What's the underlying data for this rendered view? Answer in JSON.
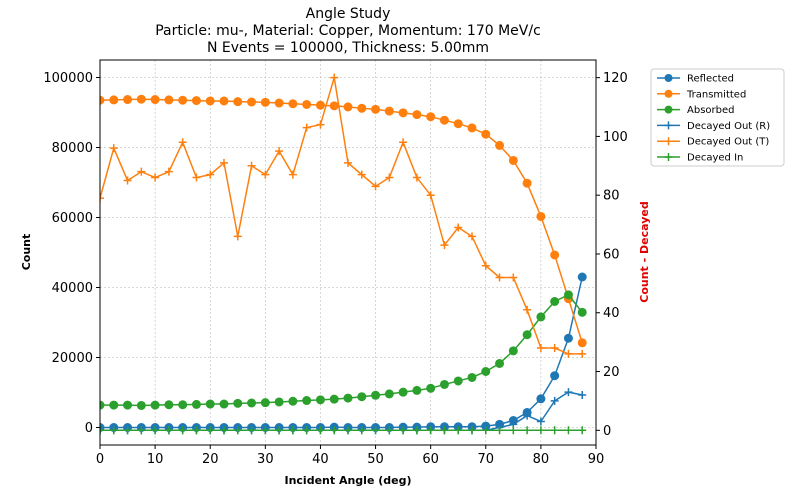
{
  "chart_data": {
    "type": "line",
    "title": "Angle Study",
    "subtitle_lines": [
      "Particle: mu-, Material: Copper, Momentum: 170 MeV/c",
      "N Events = 100000, Thickness: 5.00mm"
    ],
    "xlabel": "Incident Angle (deg)",
    "ylabel": "Count",
    "y2label": "Count - Decayed",
    "xlim": [
      0,
      90
    ],
    "ylim": [
      -5000,
      105000
    ],
    "y2lim": [
      -5,
      126
    ],
    "x_ticks": [
      0,
      10,
      20,
      30,
      40,
      50,
      60,
      70,
      80,
      90
    ],
    "y_ticks": [
      0,
      20000,
      40000,
      60000,
      80000,
      100000
    ],
    "y2_ticks": [
      0,
      20,
      40,
      60,
      80,
      100,
      120
    ],
    "grid": true,
    "legend_position": "outside-right",
    "x": [
      0,
      2.5,
      5,
      7.5,
      10,
      12.5,
      15,
      17.5,
      20,
      22.5,
      25,
      27.5,
      30,
      32.5,
      35,
      37.5,
      40,
      42.5,
      45,
      47.5,
      50,
      52.5,
      55,
      57.5,
      60,
      62.5,
      65,
      67.5,
      70,
      72.5,
      75,
      77.5,
      80,
      82.5,
      85,
      87.5
    ],
    "series": [
      {
        "name": "Reflected",
        "axis": "left",
        "color": "#1f77b4",
        "marker": "circle",
        "values": [
          0,
          0,
          0,
          0,
          0,
          0,
          0,
          0,
          0,
          0,
          0,
          0,
          0,
          0,
          0,
          0,
          0,
          100,
          0,
          0,
          0,
          0,
          100,
          100,
          200,
          200,
          200,
          200,
          400,
          900,
          2000,
          4300,
          8200,
          14800,
          25500,
          43000
        ]
      },
      {
        "name": "Transmitted",
        "axis": "left",
        "color": "#ff7f0e",
        "marker": "circle",
        "values": [
          93500,
          93600,
          93700,
          93800,
          93700,
          93600,
          93500,
          93400,
          93300,
          93300,
          93100,
          93000,
          92900,
          92700,
          92500,
          92300,
          92100,
          91900,
          91600,
          91200,
          90900,
          90400,
          89900,
          89400,
          88800,
          87800,
          86800,
          85600,
          83800,
          80600,
          76300,
          69800,
          60300,
          49300,
          36800,
          24200
        ]
      },
      {
        "name": "Absorbed",
        "axis": "left",
        "color": "#2ca02c",
        "marker": "circle",
        "values": [
          6400,
          6400,
          6400,
          6300,
          6400,
          6500,
          6500,
          6600,
          6700,
          6700,
          6900,
          7000,
          7100,
          7300,
          7500,
          7700,
          7900,
          8100,
          8400,
          8800,
          9200,
          9600,
          10100,
          10600,
          11200,
          12300,
          13300,
          14300,
          16000,
          18300,
          21900,
          26500,
          31600,
          36000,
          37900,
          32900
        ]
      },
      {
        "name": "Decayed Out (R)",
        "axis": "right",
        "color": "#1f77b4",
        "marker": "plus",
        "values": [
          0,
          0,
          0,
          0,
          0,
          0,
          0,
          0,
          0,
          0,
          0,
          0,
          0,
          0,
          0,
          0,
          0,
          0,
          0,
          0,
          0,
          0,
          0,
          0,
          0,
          0,
          0,
          0,
          0,
          1,
          2,
          5,
          3,
          10,
          13,
          12
        ]
      },
      {
        "name": "Decayed Out (T)",
        "axis": "right",
        "color": "#ff7f0e",
        "marker": "plus",
        "values": [
          79,
          96,
          85,
          88,
          86,
          88,
          98,
          86,
          87,
          91,
          66,
          90,
          87,
          95,
          87,
          103,
          104,
          120,
          91,
          87,
          83,
          86,
          98,
          86,
          80,
          63,
          69,
          66,
          56,
          52,
          52,
          41,
          28,
          28,
          26,
          26
        ]
      },
      {
        "name": "Decayed In",
        "axis": "right",
        "color": "#2ca02c",
        "marker": "plus",
        "values": [
          0,
          0,
          0,
          0,
          0,
          0,
          0,
          0,
          0,
          0,
          0,
          0,
          0,
          0,
          0,
          0,
          0,
          0,
          0,
          0,
          0,
          0,
          0,
          0,
          0,
          0,
          0,
          0,
          0,
          0,
          0,
          0,
          0,
          0,
          0,
          0
        ]
      }
    ]
  }
}
